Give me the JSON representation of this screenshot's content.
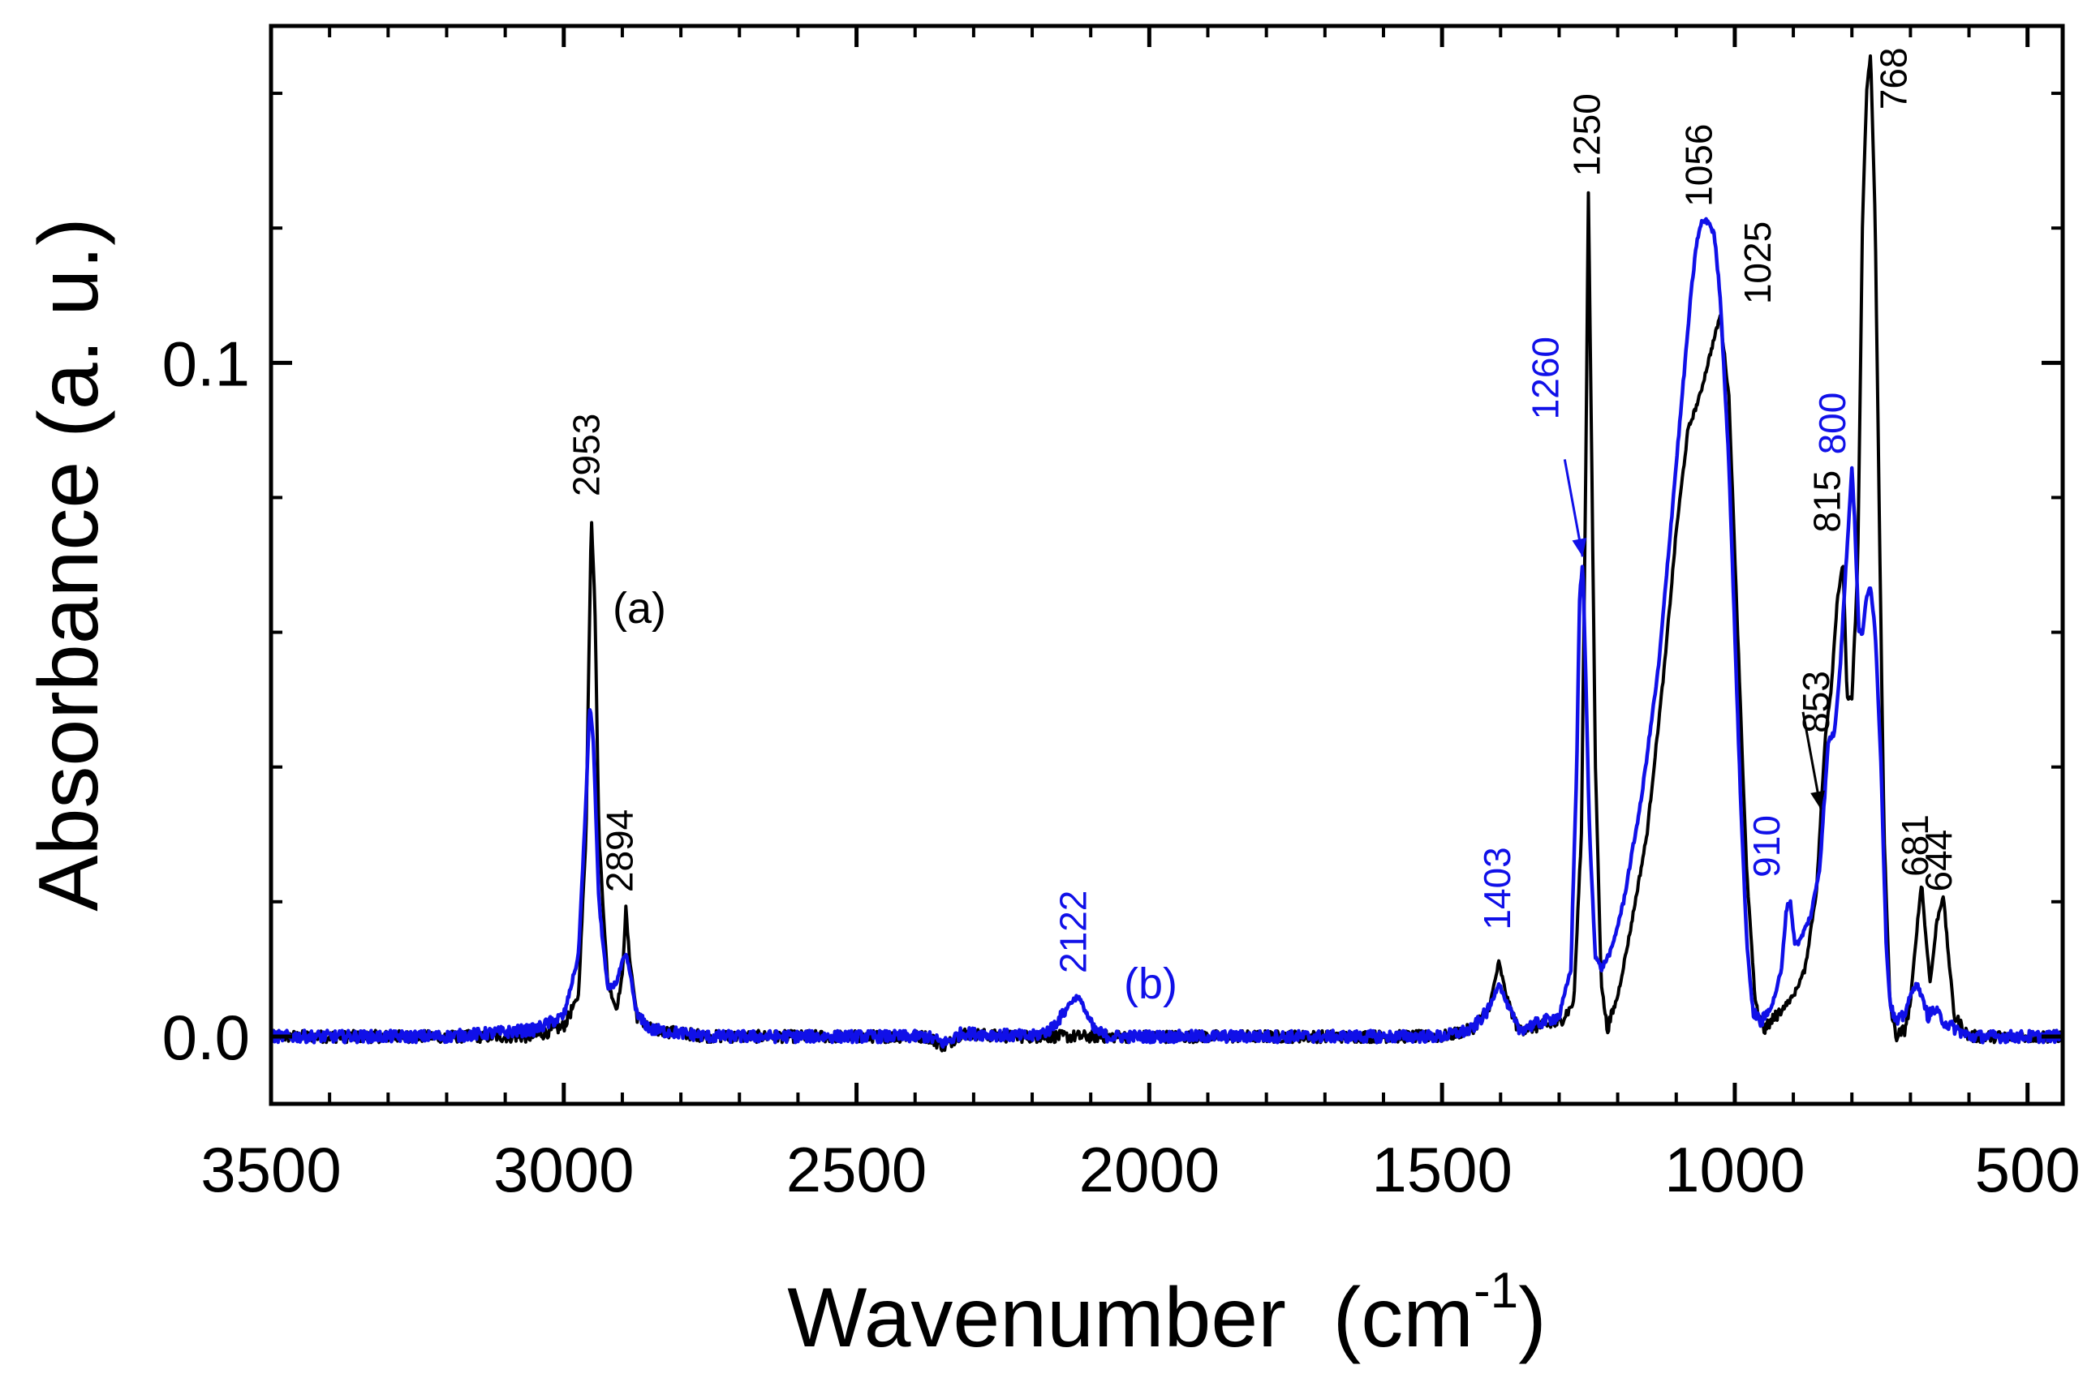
{
  "chart_data": {
    "type": "line",
    "title": "",
    "xlabel": "Wavenumber",
    "xlabel_unit_base": "(cm",
    "xlabel_unit_exp": "-1",
    "xlabel_unit_close": ")",
    "ylabel": "Absorbance (a. u.)",
    "xlim": [
      3500,
      440
    ],
    "ylim": [
      -0.01,
      0.15
    ],
    "x_ticks": [
      3500,
      3000,
      2500,
      2000,
      1500,
      1000,
      500
    ],
    "x_tick_labels": [
      "3500",
      "3000",
      "2500",
      "2000",
      "1500",
      "1000",
      "500"
    ],
    "y_ticks": [
      0.0,
      0.1
    ],
    "y_tick_labels": [
      "0.0",
      "0.1"
    ],
    "x_minor_step": 100,
    "y_minor_step": 0.02,
    "grid": false,
    "series": [
      {
        "name": "(a)",
        "color": "#000000",
        "baseline": 0.0,
        "points": [
          [
            3500,
            0.0
          ],
          [
            3200,
            0.0
          ],
          [
            3050,
            0.0
          ],
          [
            3000,
            0.0015
          ],
          [
            2975,
            0.006
          ],
          [
            2962,
            0.03
          ],
          [
            2953,
            0.0775
          ],
          [
            2947,
            0.065
          ],
          [
            2940,
            0.03
          ],
          [
            2925,
            0.008
          ],
          [
            2910,
            0.004
          ],
          [
            2900,
            0.009
          ],
          [
            2894,
            0.019
          ],
          [
            2888,
            0.012
          ],
          [
            2875,
            0.003
          ],
          [
            2850,
            0.001
          ],
          [
            2750,
            0.0
          ],
          [
            2380,
            0.0
          ],
          [
            2350,
            -0.0015
          ],
          [
            2320,
            0.0005
          ],
          [
            2250,
            0.0
          ],
          [
            2000,
            0.0
          ],
          [
            1800,
            0.0
          ],
          [
            1600,
            0.0
          ],
          [
            1500,
            0.0
          ],
          [
            1450,
            0.001
          ],
          [
            1420,
            0.004
          ],
          [
            1403,
            0.011
          ],
          [
            1390,
            0.006
          ],
          [
            1370,
            0.001
          ],
          [
            1300,
            0.002
          ],
          [
            1275,
            0.005
          ],
          [
            1262,
            0.03
          ],
          [
            1255,
            0.08
          ],
          [
            1250,
            0.1255
          ],
          [
            1245,
            0.09
          ],
          [
            1238,
            0.04
          ],
          [
            1228,
            0.008
          ],
          [
            1218,
            0.001
          ],
          [
            1200,
            0.006
          ],
          [
            1180,
            0.015
          ],
          [
            1150,
            0.03
          ],
          [
            1120,
            0.055
          ],
          [
            1100,
            0.075
          ],
          [
            1080,
            0.09
          ],
          [
            1060,
            0.095
          ],
          [
            1040,
            0.102
          ],
          [
            1025,
            0.107
          ],
          [
            1010,
            0.095
          ],
          [
            995,
            0.06
          ],
          [
            980,
            0.025
          ],
          [
            965,
            0.005
          ],
          [
            950,
            0.001
          ],
          [
            930,
            0.003
          ],
          [
            900,
            0.006
          ],
          [
            880,
            0.01
          ],
          [
            860,
            0.022
          ],
          [
            853,
            0.033
          ],
          [
            845,
            0.045
          ],
          [
            835,
            0.052
          ],
          [
            825,
            0.065
          ],
          [
            815,
            0.07
          ],
          [
            808,
            0.05
          ],
          [
            800,
            0.05
          ],
          [
            790,
            0.07
          ],
          [
            782,
            0.12
          ],
          [
            775,
            0.14
          ],
          [
            768,
            0.146
          ],
          [
            760,
            0.12
          ],
          [
            752,
            0.07
          ],
          [
            745,
            0.03
          ],
          [
            735,
            0.005
          ],
          [
            725,
            0.0
          ],
          [
            710,
            0.001
          ],
          [
            700,
            0.005
          ],
          [
            690,
            0.015
          ],
          [
            681,
            0.023
          ],
          [
            674,
            0.015
          ],
          [
            666,
            0.008
          ],
          [
            655,
            0.017
          ],
          [
            644,
            0.021
          ],
          [
            635,
            0.012
          ],
          [
            625,
            0.003
          ],
          [
            600,
            0.0
          ],
          [
            560,
            0.0
          ],
          [
            500,
            0.0
          ],
          [
            440,
            0.0
          ]
        ]
      },
      {
        "name": "(b)",
        "color": "#1010e8",
        "baseline": 0.0,
        "points": [
          [
            3500,
            0.0
          ],
          [
            3200,
            0.0
          ],
          [
            3050,
            0.001
          ],
          [
            3000,
            0.003
          ],
          [
            2975,
            0.012
          ],
          [
            2962,
            0.035
          ],
          [
            2956,
            0.049
          ],
          [
            2950,
            0.045
          ],
          [
            2940,
            0.02
          ],
          [
            2925,
            0.007
          ],
          [
            2910,
            0.008
          ],
          [
            2900,
            0.011
          ],
          [
            2894,
            0.012
          ],
          [
            2888,
            0.01
          ],
          [
            2875,
            0.003
          ],
          [
            2850,
            0.001
          ],
          [
            2750,
            0.0
          ],
          [
            2380,
            0.0
          ],
          [
            2350,
            -0.001
          ],
          [
            2320,
            0.0005
          ],
          [
            2200,
            0.0
          ],
          [
            2170,
            0.001
          ],
          [
            2150,
            0.003
          ],
          [
            2135,
            0.005
          ],
          [
            2122,
            0.006
          ],
          [
            2110,
            0.004
          ],
          [
            2095,
            0.001
          ],
          [
            2070,
            0.0
          ],
          [
            1800,
            0.0
          ],
          [
            1600,
            0.0
          ],
          [
            1500,
            0.0
          ],
          [
            1450,
            0.001
          ],
          [
            1420,
            0.004
          ],
          [
            1403,
            0.008
          ],
          [
            1390,
            0.005
          ],
          [
            1370,
            0.001
          ],
          [
            1300,
            0.003
          ],
          [
            1280,
            0.01
          ],
          [
            1270,
            0.04
          ],
          [
            1265,
            0.065
          ],
          [
            1260,
            0.0705
          ],
          [
            1255,
            0.055
          ],
          [
            1248,
            0.03
          ],
          [
            1238,
            0.012
          ],
          [
            1228,
            0.01
          ],
          [
            1210,
            0.013
          ],
          [
            1190,
            0.02
          ],
          [
            1160,
            0.035
          ],
          [
            1130,
            0.055
          ],
          [
            1110,
            0.075
          ],
          [
            1090,
            0.095
          ],
          [
            1075,
            0.11
          ],
          [
            1065,
            0.118
          ],
          [
            1056,
            0.121
          ],
          [
            1045,
            0.121
          ],
          [
            1035,
            0.119
          ],
          [
            1025,
            0.11
          ],
          [
            1010,
            0.085
          ],
          [
            1000,
            0.06
          ],
          [
            990,
            0.035
          ],
          [
            980,
            0.015
          ],
          [
            970,
            0.004
          ],
          [
            955,
            0.002
          ],
          [
            935,
            0.005
          ],
          [
            920,
            0.01
          ],
          [
            912,
            0.019
          ],
          [
            905,
            0.02
          ],
          [
            898,
            0.014
          ],
          [
            890,
            0.014
          ],
          [
            870,
            0.018
          ],
          [
            855,
            0.025
          ],
          [
            840,
            0.044
          ],
          [
            830,
            0.045
          ],
          [
            820,
            0.055
          ],
          [
            810,
            0.07
          ],
          [
            803,
            0.08
          ],
          [
            800,
            0.0847
          ],
          [
            795,
            0.076
          ],
          [
            788,
            0.06
          ],
          [
            782,
            0.06
          ],
          [
            775,
            0.065
          ],
          [
            768,
            0.067
          ],
          [
            760,
            0.06
          ],
          [
            750,
            0.04
          ],
          [
            742,
            0.015
          ],
          [
            735,
            0.005
          ],
          [
            725,
            0.002
          ],
          [
            712,
            0.003
          ],
          [
            700,
            0.006
          ],
          [
            690,
            0.008
          ],
          [
            681,
            0.006
          ],
          [
            670,
            0.003
          ],
          [
            660,
            0.004
          ],
          [
            650,
            0.003
          ],
          [
            640,
            0.002
          ],
          [
            620,
            0.001
          ],
          [
            600,
            0.0
          ],
          [
            500,
            0.0
          ],
          [
            440,
            0.0
          ]
        ]
      }
    ],
    "annotations": [
      {
        "text": "2953",
        "x": 2953,
        "y": 0.078,
        "color": "black",
        "series": "(a)"
      },
      {
        "text": "2894",
        "x": 2894,
        "y": 0.019,
        "color": "black",
        "series": "(a)"
      },
      {
        "text": "2122",
        "x": 2122,
        "y": 0.0065,
        "color": "blue",
        "series": "(b)"
      },
      {
        "text": "1403",
        "x": 1403,
        "y": 0.011,
        "color": "blue",
        "series": "(b)"
      },
      {
        "text": "1260",
        "x": 1260,
        "y": 0.0705,
        "color": "blue",
        "series": "(b)",
        "arrow": true
      },
      {
        "text": "1250",
        "x": 1250,
        "y": 0.1255,
        "color": "black",
        "series": "(a)"
      },
      {
        "text": "1056",
        "x": 1056,
        "y": 0.121,
        "color": "black",
        "series": "(a)"
      },
      {
        "text": "1025",
        "x": 1025,
        "y": 0.107,
        "color": "black",
        "series": "(a)"
      },
      {
        "text": "910",
        "x": 910,
        "y": 0.02,
        "color": "blue",
        "series": "(b)"
      },
      {
        "text": "853",
        "x": 853,
        "y": 0.033,
        "color": "black",
        "series": "(a)",
        "arrow": true
      },
      {
        "text": "815",
        "x": 815,
        "y": 0.07,
        "color": "black",
        "series": "(a)"
      },
      {
        "text": "800",
        "x": 800,
        "y": 0.0847,
        "color": "blue",
        "series": "(b)"
      },
      {
        "text": "768",
        "x": 768,
        "y": 0.146,
        "color": "black",
        "series": "(a)"
      },
      {
        "text": "681",
        "x": 681,
        "y": 0.023,
        "color": "black",
        "series": "(a)"
      },
      {
        "text": "644",
        "x": 644,
        "y": 0.021,
        "color": "black",
        "series": "(a)"
      }
    ],
    "curve_labels": [
      {
        "text": "(a)",
        "color": "black",
        "series": "(a)"
      },
      {
        "text": "(b)",
        "color": "blue",
        "series": "(b)"
      }
    ]
  }
}
